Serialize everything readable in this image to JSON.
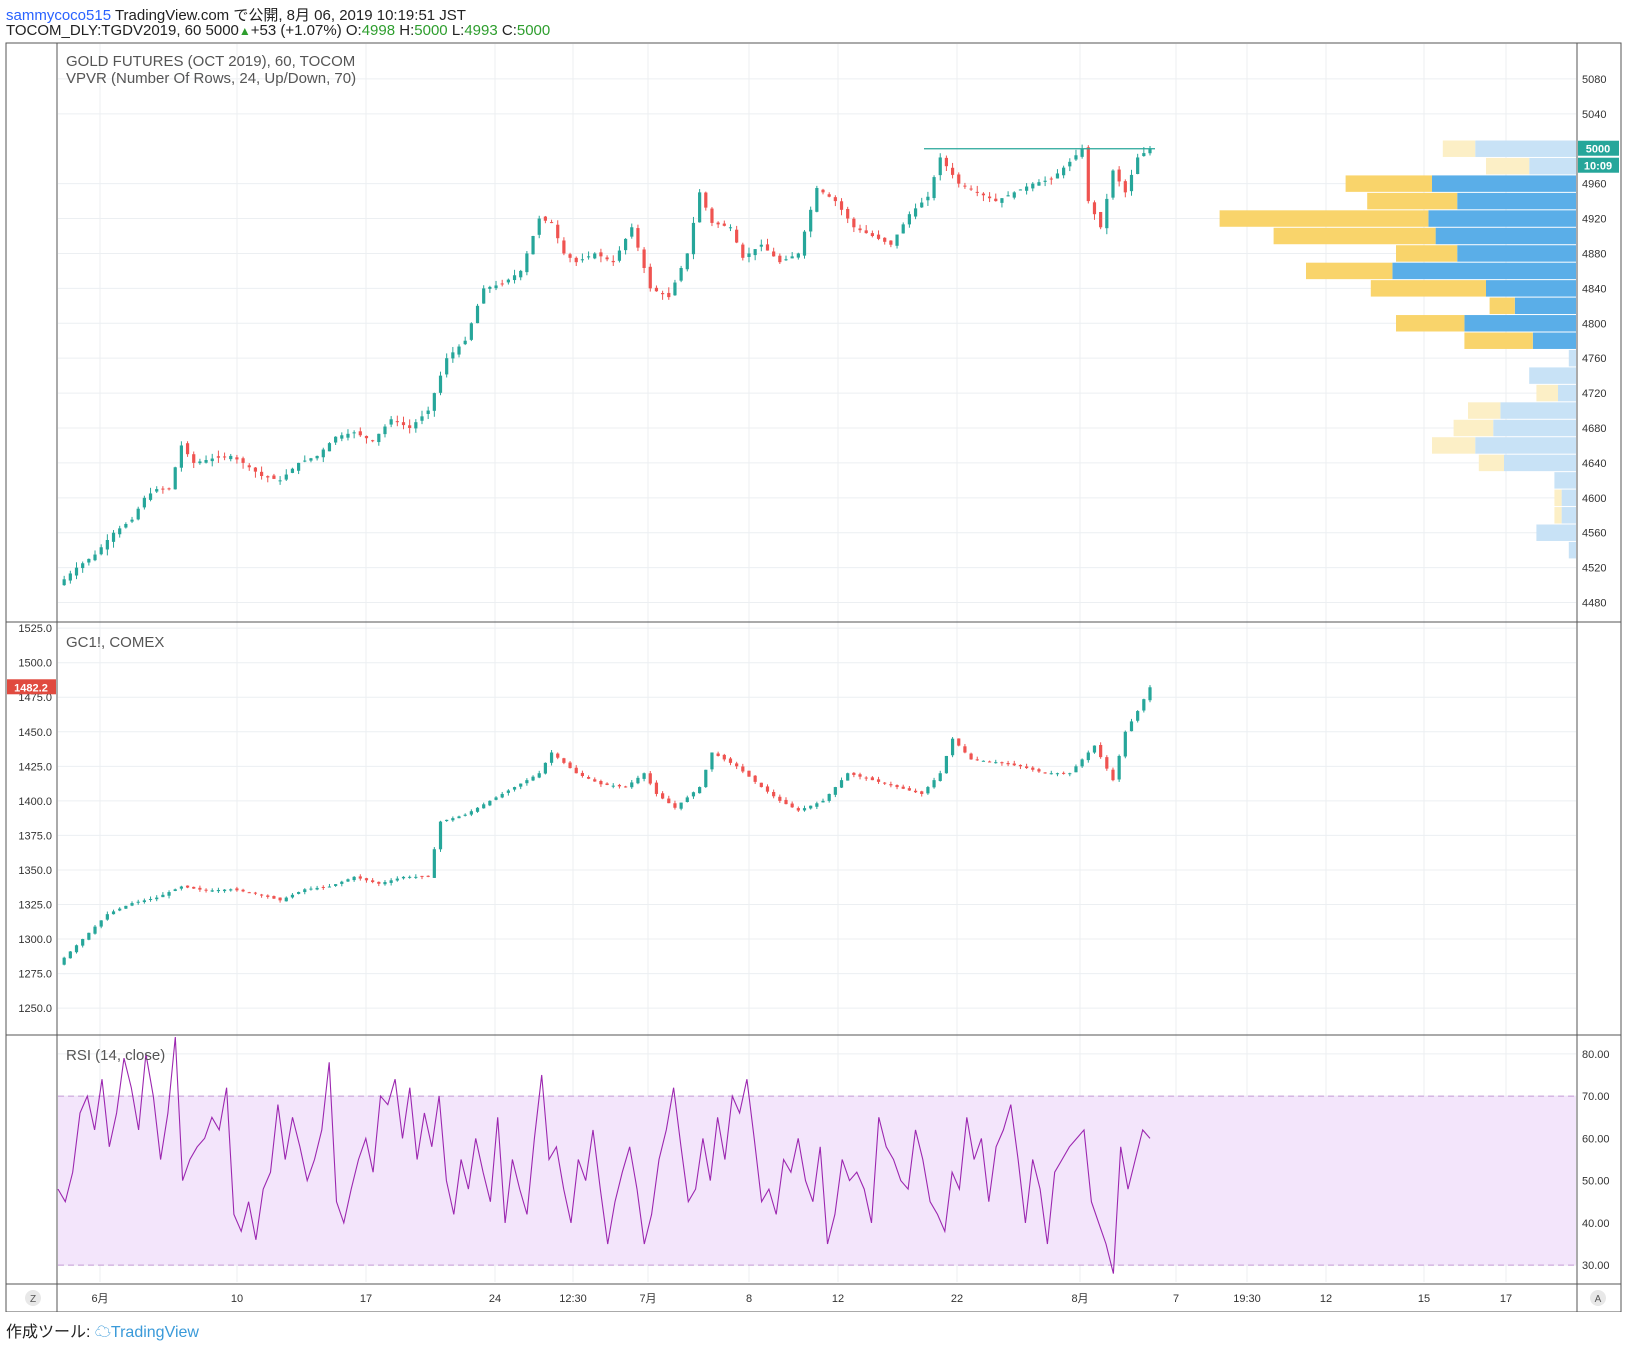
{
  "header": {
    "user": "sammycoco515",
    "publish_text": "TradingView.com で公開, 8月 06, 2019 10:19:51 JST",
    "symbol": "TOCOM_DLY:TGDV2019, 60",
    "last": "5000",
    "change": "+53 (+1.07%)",
    "o_label": "O:",
    "o": "4998",
    "h_label": "H:",
    "h": "5000",
    "l_label": "L:",
    "l": "4993",
    "c_label": "C:",
    "c": "5000"
  },
  "colors": {
    "up": "#26a69a",
    "down": "#ef5350",
    "vpvr_up": "#5aaee8",
    "vpvr_down": "#f9d46b",
    "vpvr_up_light": "#c8e2f6",
    "vpvr_down_light": "#fcefc6",
    "rsi_line": "#9c27b0",
    "rsi_band": "#f3e5fb",
    "price_tag_green": "#26a69a",
    "price_tag_red": "#e04a3f"
  },
  "panels": {
    "main": {
      "title": "GOLD FUTURES (OCT 2019), 60, TOCOM",
      "subtitle": "VPVR (Number Of Rows, 24, Up/Down, 70)"
    },
    "gc": {
      "title": "GC1!, COMEX"
    },
    "rsi": {
      "title": "RSI (14, close)"
    }
  },
  "tags": {
    "main_price": "5000",
    "main_countdown": "10:09",
    "gc_price": "1482.2"
  },
  "footer": {
    "made_with": "作成ツール:",
    "brand": "TradingView"
  },
  "scale_buttons": {
    "left": "Z",
    "right": "A"
  },
  "chart_data": [
    {
      "type": "candlestick",
      "title": "GOLD FUTURES (OCT 2019), 60, TOCOM",
      "y_ticks": [
        "5080",
        "5040",
        "4960",
        "4920",
        "4880",
        "4840",
        "4800",
        "4760",
        "4720",
        "4680",
        "4640",
        "4600",
        "4560",
        "4520",
        "4480"
      ],
      "y_range": [
        4460,
        5120
      ],
      "x_ticks": [
        "6月",
        "10",
        "17",
        "24",
        "12:30",
        "7月",
        "8",
        "12",
        "22",
        "8月",
        "7",
        "19:30",
        "12",
        "15",
        "17"
      ],
      "close_path": [
        [
          0,
          4500
        ],
        [
          3,
          4520
        ],
        [
          6,
          4535
        ],
        [
          9,
          4560
        ],
        [
          12,
          4575
        ],
        [
          14,
          4600
        ],
        [
          16,
          4610
        ],
        [
          18,
          4610
        ],
        [
          20,
          4660
        ],
        [
          22,
          4640
        ],
        [
          25,
          4645
        ],
        [
          28,
          4648
        ],
        [
          30,
          4640
        ],
        [
          33,
          4625
        ],
        [
          36,
          4620
        ],
        [
          39,
          4640
        ],
        [
          42,
          4648
        ],
        [
          45,
          4670
        ],
        [
          48,
          4675
        ],
        [
          51,
          4665
        ],
        [
          54,
          4690
        ],
        [
          57,
          4680
        ],
        [
          60,
          4700
        ],
        [
          63,
          4760
        ],
        [
          66,
          4780
        ],
        [
          69,
          4840
        ],
        [
          72,
          4845
        ],
        [
          75,
          4860
        ],
        [
          78,
          4920
        ],
        [
          80,
          4915
        ],
        [
          82,
          4880
        ],
        [
          84,
          4870
        ],
        [
          87,
          4880
        ],
        [
          90,
          4870
        ],
        [
          93,
          4910
        ],
        [
          96,
          4840
        ],
        [
          99,
          4830
        ],
        [
          102,
          4880
        ],
        [
          104,
          4950
        ],
        [
          106,
          4915
        ],
        [
          109,
          4910
        ],
        [
          111,
          4875
        ],
        [
          114,
          4890
        ],
        [
          117,
          4870
        ],
        [
          120,
          4880
        ],
        [
          123,
          4955
        ],
        [
          126,
          4940
        ],
        [
          129,
          4910
        ],
        [
          132,
          4900
        ],
        [
          135,
          4890
        ],
        [
          138,
          4925
        ],
        [
          141,
          4945
        ],
        [
          143,
          4990
        ],
        [
          146,
          4960
        ],
        [
          149,
          4950
        ],
        [
          152,
          4940
        ],
        [
          155,
          4950
        ],
        [
          158,
          4960
        ],
        [
          161,
          4965
        ],
        [
          164,
          4985
        ],
        [
          166,
          5000
        ],
        [
          167,
          4940
        ],
        [
          169,
          4910
        ],
        [
          171,
          4975
        ],
        [
          173,
          4950
        ],
        [
          175,
          4990
        ],
        [
          177,
          5000
        ]
      ],
      "n_bars": 177,
      "last": 5000
    },
    {
      "type": "bar",
      "title": "VPVR (Number Of Rows, 24, Up/Down, 70)",
      "rows": [
        {
          "price": 5000,
          "up": 0.28,
          "down": 0.09,
          "in_value_area": false
        },
        {
          "price": 4980,
          "up": 0.13,
          "down": 0.12,
          "in_value_area": false
        },
        {
          "price": 4960,
          "up": 0.4,
          "down": 0.24,
          "in_value_area": true
        },
        {
          "price": 4940,
          "up": 0.33,
          "down": 0.25,
          "in_value_area": true
        },
        {
          "price": 4920,
          "up": 0.41,
          "down": 0.58,
          "in_value_area": true
        },
        {
          "price": 4900,
          "up": 0.39,
          "down": 0.45,
          "in_value_area": true
        },
        {
          "price": 4880,
          "up": 0.33,
          "down": 0.17,
          "in_value_area": true
        },
        {
          "price": 4860,
          "up": 0.51,
          "down": 0.24,
          "in_value_area": true
        },
        {
          "price": 4840,
          "up": 0.25,
          "down": 0.32,
          "in_value_area": true
        },
        {
          "price": 4820,
          "up": 0.17,
          "down": 0.07,
          "in_value_area": true
        },
        {
          "price": 4800,
          "up": 0.31,
          "down": 0.19,
          "in_value_area": true
        },
        {
          "price": 4780,
          "up": 0.12,
          "down": 0.19,
          "in_value_area": true
        },
        {
          "price": 4760,
          "up": 0.02,
          "down": 0.0,
          "in_value_area": false
        },
        {
          "price": 4740,
          "up": 0.13,
          "down": 0.0,
          "in_value_area": false
        },
        {
          "price": 4720,
          "up": 0.05,
          "down": 0.06,
          "in_value_area": false
        },
        {
          "price": 4700,
          "up": 0.21,
          "down": 0.09,
          "in_value_area": false
        },
        {
          "price": 4680,
          "up": 0.23,
          "down": 0.11,
          "in_value_area": false
        },
        {
          "price": 4660,
          "up": 0.28,
          "down": 0.12,
          "in_value_area": false
        },
        {
          "price": 4640,
          "up": 0.2,
          "down": 0.07,
          "in_value_area": false
        },
        {
          "price": 4620,
          "up": 0.06,
          "down": 0.0,
          "in_value_area": false
        },
        {
          "price": 4600,
          "up": 0.04,
          "down": 0.02,
          "in_value_area": false
        },
        {
          "price": 4580,
          "up": 0.04,
          "down": 0.02,
          "in_value_area": false
        },
        {
          "price": 4560,
          "up": 0.11,
          "down": 0.0,
          "in_value_area": false
        },
        {
          "price": 4540,
          "up": 0.02,
          "down": 0.0,
          "in_value_area": false
        }
      ]
    },
    {
      "type": "candlestick",
      "title": "GC1!, COMEX",
      "y_ticks": [
        "1525.0",
        "1500.0",
        "1475.0",
        "1450.0",
        "1425.0",
        "1400.0",
        "1375.0",
        "1350.0",
        "1325.0",
        "1300.0",
        "1275.0",
        "1250.0"
      ],
      "y_range": [
        1232,
        1528
      ],
      "close_path": [
        [
          0,
          1282
        ],
        [
          4,
          1300
        ],
        [
          8,
          1318
        ],
        [
          12,
          1326
        ],
        [
          16,
          1330
        ],
        [
          20,
          1338
        ],
        [
          24,
          1335
        ],
        [
          28,
          1336
        ],
        [
          32,
          1333
        ],
        [
          36,
          1328
        ],
        [
          40,
          1336
        ],
        [
          44,
          1338
        ],
        [
          48,
          1345
        ],
        [
          52,
          1340
        ],
        [
          56,
          1345
        ],
        [
          60,
          1345
        ],
        [
          62,
          1385
        ],
        [
          66,
          1390
        ],
        [
          70,
          1400
        ],
        [
          74,
          1410
        ],
        [
          78,
          1420
        ],
        [
          80,
          1435
        ],
        [
          84,
          1420
        ],
        [
          88,
          1412
        ],
        [
          92,
          1410
        ],
        [
          95,
          1420
        ],
        [
          97,
          1405
        ],
        [
          100,
          1395
        ],
        [
          104,
          1410
        ],
        [
          106,
          1435
        ],
        [
          110,
          1425
        ],
        [
          114,
          1410
        ],
        [
          117,
          1400
        ],
        [
          120,
          1393
        ],
        [
          124,
          1400
        ],
        [
          128,
          1420
        ],
        [
          132,
          1415
        ],
        [
          136,
          1410
        ],
        [
          140,
          1405
        ],
        [
          143,
          1420
        ],
        [
          145,
          1445
        ],
        [
          148,
          1430
        ],
        [
          152,
          1428
        ],
        [
          156,
          1425
        ],
        [
          160,
          1420
        ],
        [
          164,
          1420
        ],
        [
          168,
          1440
        ],
        [
          171,
          1415
        ],
        [
          173,
          1450
        ],
        [
          175,
          1465
        ],
        [
          177,
          1482.2
        ]
      ],
      "last": 1482.2
    },
    {
      "type": "line",
      "title": "RSI (14, close)",
      "y_ticks": [
        "80.00",
        "70.00",
        "60.00",
        "50.00",
        "40.00",
        "30.00"
      ],
      "y_range": [
        26,
        84
      ],
      "bands": [
        30,
        70
      ],
      "series": [
        {
          "values": [
            48,
            45,
            52,
            66,
            70,
            62,
            74,
            58,
            66,
            79,
            72,
            62,
            80,
            70,
            55,
            66,
            84,
            50,
            55,
            58,
            60,
            65,
            62,
            72,
            42,
            38,
            45,
            36,
            48,
            52,
            68,
            55,
            65,
            58,
            50,
            55,
            62,
            78,
            45,
            40,
            48,
            55,
            60,
            52,
            70,
            68,
            74,
            60,
            72,
            55,
            66,
            58,
            70,
            50,
            42,
            55,
            48,
            60,
            52,
            45,
            65,
            40,
            55,
            48,
            42,
            60,
            75,
            55,
            58,
            48,
            40,
            55,
            50,
            62,
            48,
            35,
            45,
            52,
            58,
            48,
            35,
            42,
            55,
            62,
            72,
            58,
            45,
            48,
            60,
            50,
            65,
            55,
            70,
            66,
            74,
            60,
            45,
            48,
            42,
            55,
            52,
            60,
            50,
            45,
            58,
            35,
            42,
            55,
            50,
            52,
            48,
            40,
            65,
            58,
            55,
            50,
            48,
            62,
            55,
            45,
            42,
            38,
            52,
            48,
            65,
            55,
            60,
            45,
            58,
            62,
            68,
            55,
            40,
            55,
            48,
            35,
            52,
            55,
            58,
            60,
            62,
            45,
            40,
            35,
            28,
            58,
            48,
            55,
            62,
            60
          ]
        }
      ]
    }
  ]
}
